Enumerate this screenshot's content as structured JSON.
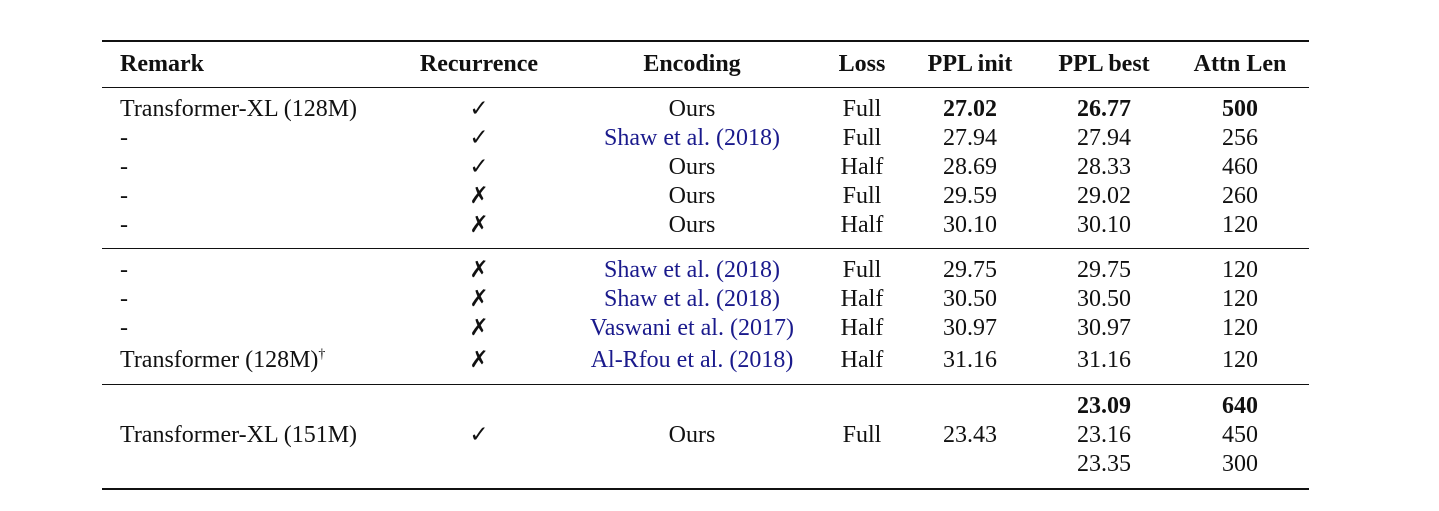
{
  "header": {
    "remark": "Remark",
    "recurrence": "Recurrence",
    "encoding": "Encoding",
    "loss": "Loss",
    "ppl_init": "PPL init",
    "ppl_best": "PPL best",
    "attn_len": "Attn Len"
  },
  "group1": [
    {
      "remark": "Transformer-XL (128M)",
      "rec": "✓",
      "enc": "Ours",
      "loss": "Full",
      "init": "27.02",
      "best": "26.77",
      "attn": "500"
    },
    {
      "remark": "-",
      "rec": "✓",
      "enc": "Shaw et al. (2018)",
      "loss": "Full",
      "init": "27.94",
      "best": "27.94",
      "attn": "256"
    },
    {
      "remark": "-",
      "rec": "✓",
      "enc": "Ours",
      "loss": "Half",
      "init": "28.69",
      "best": "28.33",
      "attn": "460"
    },
    {
      "remark": "-",
      "rec": "✗",
      "enc": "Ours",
      "loss": "Full",
      "init": "29.59",
      "best": "29.02",
      "attn": "260"
    },
    {
      "remark": "-",
      "rec": "✗",
      "enc": "Ours",
      "loss": "Half",
      "init": "30.10",
      "best": "30.10",
      "attn": "120"
    }
  ],
  "group2": [
    {
      "remark": "-",
      "rec": "✗",
      "enc": "Shaw et al. (2018)",
      "loss": "Full",
      "init": "29.75",
      "best": "29.75",
      "attn": "120"
    },
    {
      "remark": "-",
      "rec": "✗",
      "enc": "Shaw et al. (2018)",
      "loss": "Half",
      "init": "30.50",
      "best": "30.50",
      "attn": "120"
    },
    {
      "remark": "-",
      "rec": "✗",
      "enc": "Vaswani et al. (2017)",
      "loss": "Half",
      "init": "30.97",
      "best": "30.97",
      "attn": "120"
    },
    {
      "remark": "Transformer (128M)",
      "dagger": "†",
      "rec": "✗",
      "enc": "Al-Rfou et al. (2018)",
      "loss": "Half",
      "init": "31.16",
      "best": "31.16",
      "attn": "120"
    }
  ],
  "group3": {
    "remark": "Transformer-XL (151M)",
    "rec": "✓",
    "enc": "Ours",
    "loss": "Full",
    "init": "23.43",
    "best": [
      "23.09",
      "23.16",
      "23.35"
    ],
    "attn": [
      "640",
      "450",
      "300"
    ]
  },
  "colors": {
    "text": "#111111",
    "citation": "#1a1a8c"
  }
}
